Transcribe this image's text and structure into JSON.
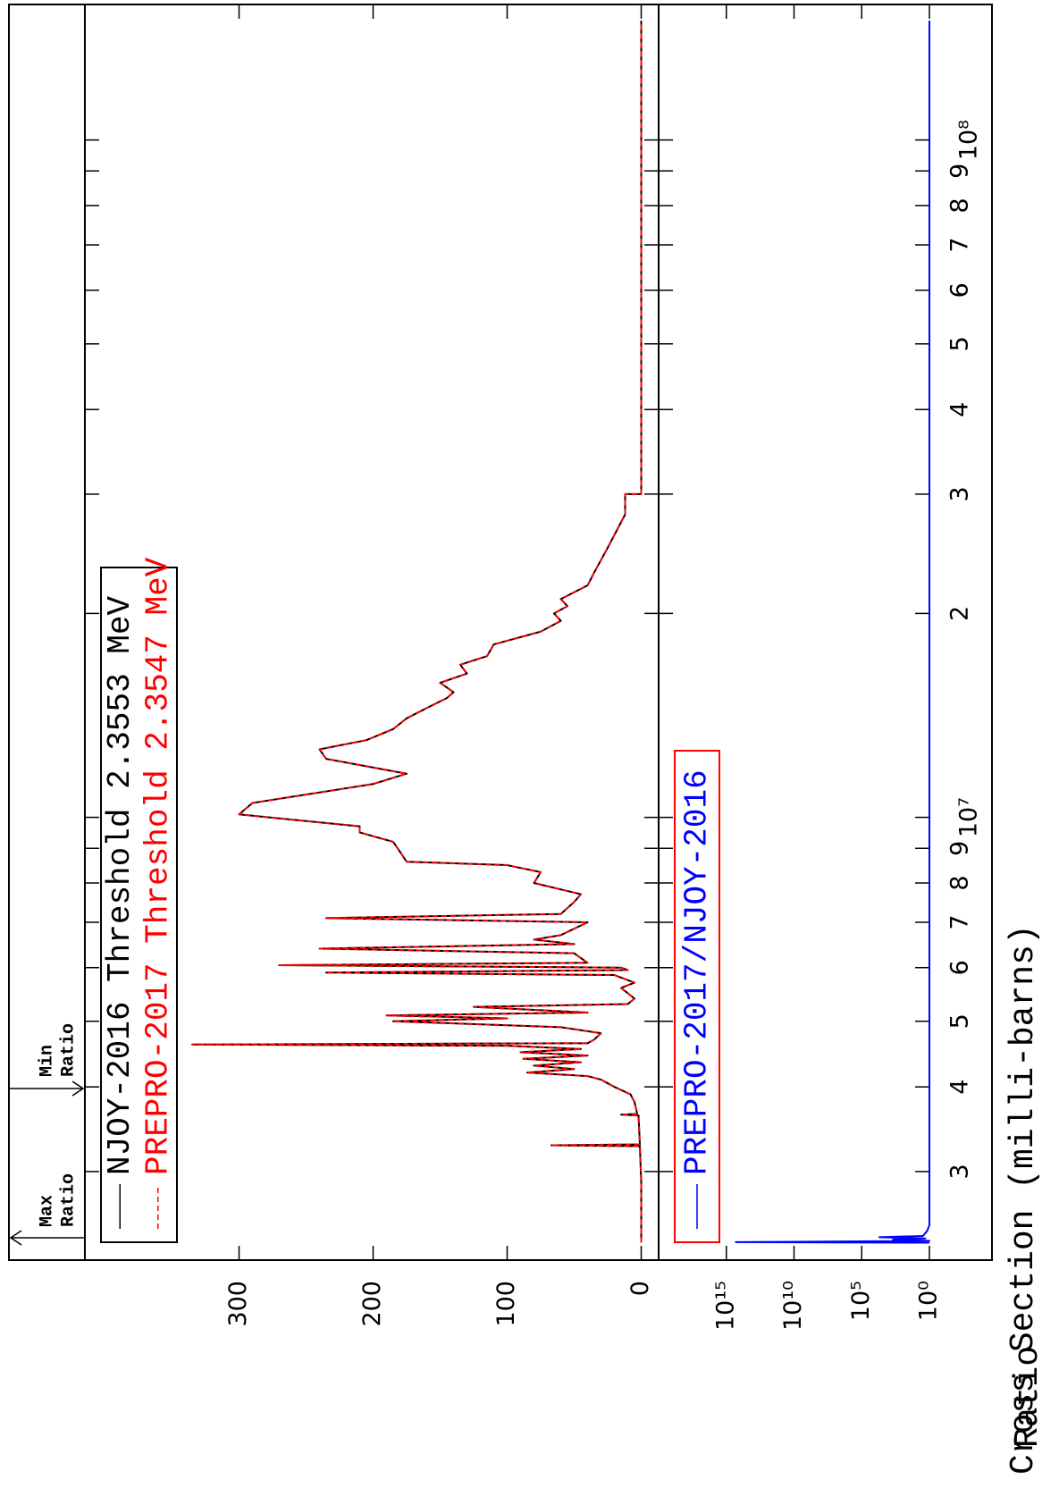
{
  "chart_data": [
    {
      "type": "line",
      "xscale": "log",
      "ylabel": "Cross Section (milli-barns)",
      "annotations": [
        {
          "lines": [
            "Max",
            "Ratio"
          ]
        },
        {
          "lines": [
            "Min",
            "Ratio"
          ]
        }
      ],
      "x": [
        2355300,
        2900000,
        3270000,
        3280000,
        3290000,
        3630000,
        3640000,
        3650000,
        3800000,
        3900000,
        4000000,
        4100000,
        4150000,
        4200000,
        4250000,
        4300000,
        4350000,
        4400000,
        4450000,
        4500000,
        4550000,
        4600000,
        4620000,
        4640000,
        4700000,
        4800000,
        4900000,
        5000000,
        5050000,
        5100000,
        5150000,
        5250000,
        5300000,
        5400000,
        5500000,
        5600000,
        5700000,
        5850000,
        5900000,
        5950000,
        6000000,
        6050000,
        6100000,
        6300000,
        6400000,
        6500000,
        6600000,
        6700000,
        7000000,
        7100000,
        7200000,
        7500000,
        7700000,
        8000000,
        8300000,
        8500000,
        8600000,
        8900000,
        9200000,
        9500000,
        9700000,
        10100000,
        10500000,
        11200000,
        11600000,
        12200000,
        12600000,
        13000000,
        13500000,
        14000000,
        14500000,
        15000000,
        15300000,
        15800000,
        16300000,
        16800000,
        17300000,
        18000000,
        18800000,
        19500000,
        20000000,
        20500000,
        21000000,
        22000000,
        23000000,
        25000000,
        28000000,
        30000000,
        30010000,
        150000000
      ],
      "series": [
        {
          "name": "NJOY-2016 Threshold 2.3553 MeV",
          "color": "#000000",
          "dash": false,
          "values": [
            0,
            0,
            1,
            67,
            1,
            2,
            15,
            3,
            5,
            8,
            20,
            30,
            40,
            85,
            50,
            80,
            45,
            88,
            40,
            90,
            45,
            100,
            335,
            40,
            35,
            30,
            60,
            185,
            100,
            190,
            40,
            125,
            10,
            5,
            10,
            15,
            5,
            20,
            235,
            10,
            15,
            270,
            40,
            50,
            240,
            50,
            80,
            60,
            40,
            235,
            60,
            50,
            45,
            80,
            75,
            100,
            175,
            180,
            185,
            210,
            210,
            300,
            290,
            200,
            175,
            235,
            240,
            205,
            185,
            175,
            160,
            145,
            140,
            150,
            130,
            135,
            115,
            110,
            75,
            60,
            65,
            55,
            60,
            40,
            35,
            25,
            12,
            12,
            0,
            0
          ]
        },
        {
          "name": "PREPRO-2017 Threshold 2.3547 MeV",
          "color": "#ff0000",
          "dash": true,
          "values": [
            0,
            0,
            1,
            67,
            1,
            2,
            15,
            3,
            5,
            8,
            20,
            30,
            40,
            85,
            50,
            80,
            45,
            88,
            40,
            90,
            45,
            100,
            335,
            40,
            35,
            30,
            60,
            185,
            100,
            190,
            40,
            125,
            10,
            5,
            10,
            15,
            5,
            20,
            235,
            10,
            15,
            270,
            40,
            50,
            240,
            50,
            80,
            60,
            40,
            235,
            60,
            50,
            45,
            80,
            75,
            100,
            175,
            180,
            185,
            210,
            210,
            300,
            290,
            200,
            175,
            235,
            240,
            205,
            185,
            175,
            160,
            145,
            140,
            150,
            130,
            135,
            115,
            110,
            75,
            60,
            65,
            55,
            60,
            40,
            35,
            25,
            12,
            12,
            0,
            0
          ]
        }
      ],
      "xlim": [
        2220000,
        158500000
      ],
      "ylim": [
        -13,
        415
      ],
      "yticks": [
        0,
        100,
        200,
        300
      ],
      "legend_border": "#000000"
    },
    {
      "type": "line",
      "xscale": "log",
      "yscale": "log",
      "ylabel": "Ratio",
      "x": [
        2355300,
        2360000,
        2370000,
        2380000,
        2390000,
        2400000,
        2410000,
        2450000,
        2500000,
        150000000
      ],
      "series": [
        {
          "name": "PREPRO-2017/NJOY-2016",
          "color": "#0000ff",
          "dash": false,
          "values": [
            1,
            200000000000000,
            1,
            500,
            2,
            5000,
            3,
            1.5,
            1,
            1
          ]
        }
      ],
      "xlim": [
        2220000,
        158500000
      ],
      "xticks": [
        {
          "value": 3000000,
          "label": "3"
        },
        {
          "value": 4000000,
          "label": "4"
        },
        {
          "value": 5000000,
          "label": "5"
        },
        {
          "value": 6000000,
          "label": "6"
        },
        {
          "value": 7000000,
          "label": "7"
        },
        {
          "value": 8000000,
          "label": "8"
        },
        {
          "value": 9000000,
          "label": "9"
        },
        {
          "value": 10000000,
          "label": "10⁷"
        },
        {
          "value": 20000000,
          "label": "2"
        },
        {
          "value": 30000000,
          "label": "3"
        },
        {
          "value": 40000000,
          "label": "4"
        },
        {
          "value": 50000000,
          "label": "5"
        },
        {
          "value": 60000000,
          "label": "6"
        },
        {
          "value": 70000000,
          "label": "7"
        },
        {
          "value": 80000000,
          "label": "8"
        },
        {
          "value": 90000000,
          "label": "9"
        },
        {
          "value": 100000000,
          "label": "10⁸"
        }
      ],
      "ylim": [
        1,
        1e+20
      ],
      "yticks": [
        {
          "value": 1,
          "label": "10⁰"
        },
        {
          "value": 100000,
          "label": "10⁵"
        },
        {
          "value": 10000000000,
          "label": "10¹⁰"
        },
        {
          "value": 1000000000000000,
          "label": "10¹⁵"
        }
      ],
      "legend_border": "#ff0000"
    }
  ]
}
